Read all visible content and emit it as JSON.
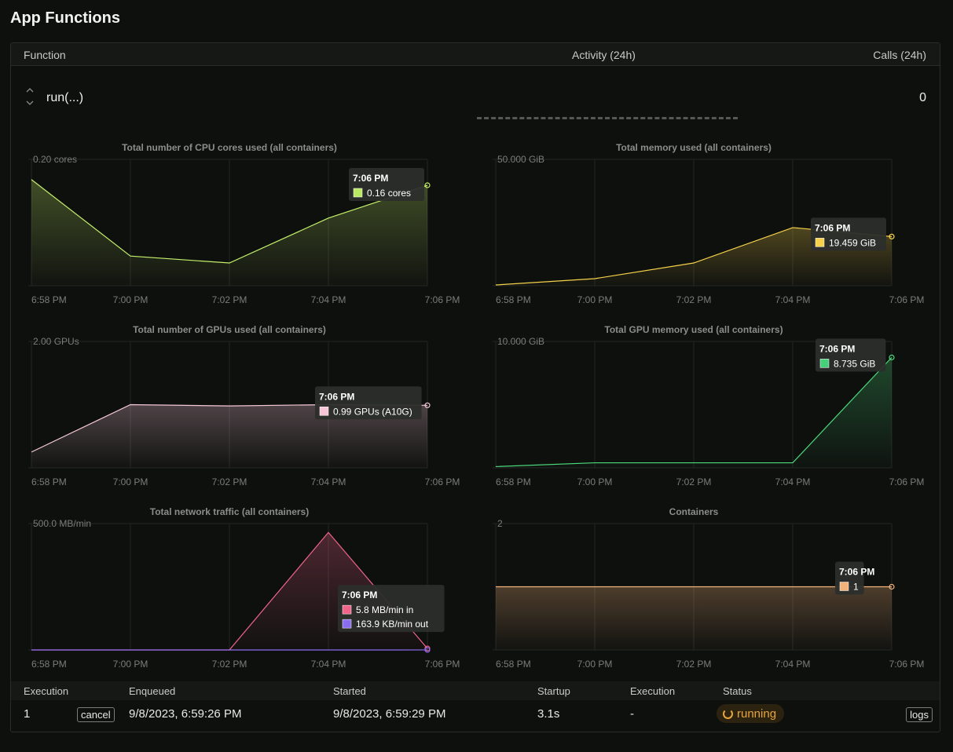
{
  "page": {
    "title": "App Functions"
  },
  "table": {
    "col_function": "Function",
    "col_activity": "Activity (24h)",
    "col_calls": "Calls (24h)"
  },
  "function_row": {
    "name": "run(...)",
    "calls": "0"
  },
  "x_ticks": [
    "6:58 PM",
    "7:00 PM",
    "7:02 PM",
    "7:04 PM",
    "7:06 PM"
  ],
  "chart_data": [
    {
      "type": "area",
      "title": "Total number of CPU cores used (all containers)",
      "ymax_label": "0.20 cores",
      "ylim": [
        0,
        0.2
      ],
      "x": [
        "6:58 PM",
        "7:00 PM",
        "7:02 PM",
        "7:04 PM",
        "7:06 PM"
      ],
      "series": [
        {
          "values": [
            0.168,
            0.047,
            0.036,
            0.107,
            0.159
          ],
          "color": "#c5f06a"
        }
      ],
      "tooltip": {
        "time": "7:06 PM",
        "items": [
          {
            "label": "0.16 cores",
            "color": "#b9ea62"
          }
        ]
      }
    },
    {
      "type": "area",
      "title": "Total memory used (all containers)",
      "ymax_label": "50.000 GiB",
      "ylim": [
        0,
        50
      ],
      "x": [
        "6:58 PM",
        "7:00 PM",
        "7:02 PM",
        "7:04 PM",
        "7:06 PM"
      ],
      "series": [
        {
          "values": [
            0.3,
            2.8,
            9.0,
            23.0,
            19.459
          ],
          "color": "#f5d14a"
        }
      ],
      "tooltip": {
        "time": "7:06 PM",
        "items": [
          {
            "label": "19.459 GiB",
            "color": "#f5d14a"
          }
        ]
      }
    },
    {
      "type": "area",
      "title": "Total number of GPUs used (all containers)",
      "ymax_label": "2.00 GPUs",
      "ylim": [
        0,
        2
      ],
      "x": [
        "6:58 PM",
        "7:00 PM",
        "7:02 PM",
        "7:04 PM",
        "7:06 PM"
      ],
      "series": [
        {
          "values": [
            0.25,
            1.0,
            0.98,
            1.0,
            0.99
          ],
          "color": "#f4c7d8"
        }
      ],
      "tooltip": {
        "time": "7:06 PM",
        "items": [
          {
            "label": "0.99 GPUs (A10G)",
            "color": "#f6c5d8"
          }
        ]
      }
    },
    {
      "type": "area",
      "title": "Total GPU memory used (all containers)",
      "ymax_label": "10.000 GiB",
      "ylim": [
        0,
        10
      ],
      "x": [
        "6:58 PM",
        "7:00 PM",
        "7:02 PM",
        "7:04 PM",
        "7:06 PM"
      ],
      "series": [
        {
          "values": [
            0.1,
            0.4,
            0.4,
            0.4,
            8.735
          ],
          "color": "#4cd97b"
        }
      ],
      "tooltip": {
        "time": "7:06 PM",
        "items": [
          {
            "label": "8.735 GiB",
            "color": "#46d07a"
          }
        ]
      }
    },
    {
      "type": "area",
      "title": "Total network traffic (all containers)",
      "ymax_label": "500.0 MB/min",
      "ylim": [
        0,
        500
      ],
      "x": [
        "6:58 PM",
        "7:00 PM",
        "7:02 PM",
        "7:04 PM",
        "7:06 PM"
      ],
      "series": [
        {
          "values": [
            0,
            0,
            0,
            465,
            5.8
          ],
          "color": "#f0648a"
        },
        {
          "values": [
            0,
            0,
            0,
            0,
            0.16
          ],
          "color": "#8a6cf0"
        }
      ],
      "tooltip": {
        "time": "7:06 PM",
        "items": [
          {
            "label": "5.8 MB/min in",
            "color": "#f0648a"
          },
          {
            "label": "163.9 KB/min out",
            "color": "#8a6cf0"
          }
        ]
      }
    },
    {
      "type": "area",
      "title": "Containers",
      "ymax_label": "2",
      "ylim": [
        0,
        2
      ],
      "x": [
        "6:58 PM",
        "7:00 PM",
        "7:02 PM",
        "7:04 PM",
        "7:06 PM"
      ],
      "series": [
        {
          "values": [
            1,
            1,
            1,
            1,
            1
          ],
          "color": "#f2b27a"
        }
      ],
      "tooltip": {
        "time": "7:06 PM",
        "items": [
          {
            "label": "1",
            "color": "#f2b27a"
          }
        ]
      }
    }
  ],
  "executions": {
    "headers": [
      "Execution",
      "Enqueued",
      "Started",
      "Startup",
      "Execution",
      "Status"
    ],
    "rows": [
      {
        "id": "1",
        "cancel_label": "cancel",
        "enqueued": "9/8/2023, 6:59:26 PM",
        "started": "9/8/2023, 6:59:29 PM",
        "startup": "3.1s",
        "execution": "-",
        "status": "running",
        "logs_label": "logs"
      }
    ]
  },
  "colors": {
    "status_running": "#e8a43c",
    "background": "#0e100e"
  },
  "icons": {
    "sort": "sort-updown-icon",
    "status": "spinner-icon"
  }
}
